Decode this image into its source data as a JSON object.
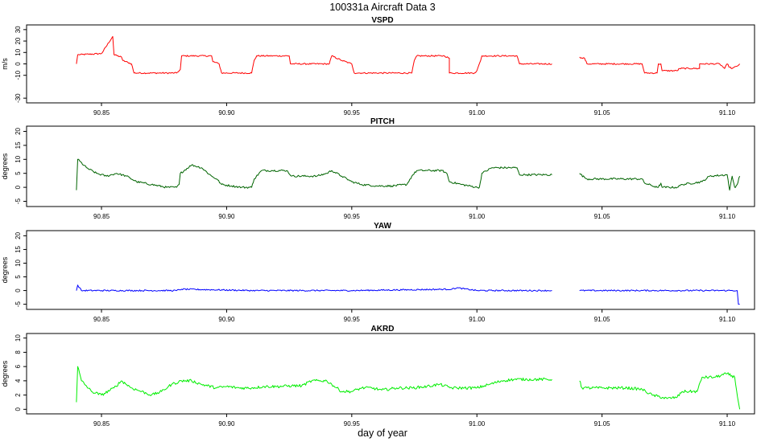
{
  "page": {
    "title": "100331a   Aircraft Data 3",
    "xlabel": "day of year"
  },
  "chart_data": [
    {
      "type": "line",
      "title": "VSPD",
      "ylabel": "m/s",
      "color": "#ff0000",
      "xlim": [
        90.822,
        91.109
      ],
      "ylim": [
        -32,
        32
      ],
      "x_ticks": [
        90.85,
        90.9,
        90.95,
        91.0,
        91.05,
        91.1
      ],
      "x_tick_labels": [
        "90.85",
        "90.90",
        "90.95",
        "91.00",
        "91.05",
        "91.10"
      ],
      "y_ticks": [
        -30,
        -10,
        0,
        10,
        20,
        30
      ],
      "y_tick_labels": [
        "-30",
        "-10",
        "0",
        "10",
        "20",
        "30"
      ],
      "series": [
        {
          "noise": 0.6,
          "x": [
            90.84,
            90.8405,
            90.85,
            90.8545,
            90.855,
            90.858,
            90.8585,
            90.862,
            90.863,
            90.88,
            90.8815,
            90.882,
            90.894,
            90.8945,
            90.897,
            90.898,
            90.91,
            90.911,
            90.912,
            90.925,
            90.9255,
            90.941,
            90.942,
            90.946,
            90.95,
            90.951,
            90.953,
            90.954,
            90.974,
            90.975,
            90.976,
            90.987,
            90.989,
            90.989,
            90.99,
            90.999,
            91.0,
            91.0015,
            91.002,
            91.016,
            91.017,
            91.03,
            null,
            91.041,
            91.0415,
            91.043,
            91.044,
            91.066,
            91.067,
            91.072,
            91.0725,
            91.0735,
            91.074,
            91.08,
            91.081,
            91.089,
            91.089,
            91.097,
            91.099,
            91.1,
            91.101,
            91.102,
            91.104,
            91.105
          ],
          "y": [
            0,
            8,
            9,
            24,
            8,
            6,
            3,
            0,
            -8,
            -8,
            -5,
            7,
            7,
            2,
            0,
            -8,
            -8,
            3,
            7,
            7,
            0,
            0,
            7,
            3,
            0,
            -8,
            -8,
            -8,
            -8,
            3,
            7,
            7,
            5,
            -8,
            -8,
            -8,
            -6,
            3,
            7,
            7,
            0,
            0,
            null,
            6,
            5,
            5,
            0,
            0,
            -8,
            -8,
            0,
            0,
            -6,
            -6,
            -4,
            -4,
            0,
            0,
            -4,
            0,
            -3,
            -4,
            -2,
            0
          ]
        }
      ]
    },
    {
      "type": "line",
      "title": "PITCH",
      "ylabel": "degrees",
      "color": "#006400",
      "xlim": [
        90.822,
        91.109
      ],
      "ylim": [
        -6,
        21
      ],
      "x_ticks": [
        90.85,
        90.9,
        90.95,
        91.0,
        91.05,
        91.1
      ],
      "x_tick_labels": [
        "90.85",
        "90.90",
        "90.95",
        "91.00",
        "91.05",
        "91.10"
      ],
      "y_ticks": [
        -5,
        0,
        5,
        10,
        15,
        20
      ],
      "y_tick_labels": [
        "-5",
        "0",
        "5",
        "10",
        "15",
        "20"
      ],
      "series": [
        {
          "noise": 0.35,
          "x": [
            90.84,
            90.8405,
            90.844,
            90.848,
            90.852,
            90.856,
            90.86,
            90.864,
            90.87,
            90.876,
            90.88,
            90.881,
            90.8815,
            90.886,
            90.89,
            90.894,
            90.896,
            90.898,
            90.902,
            90.906,
            90.91,
            90.911,
            90.914,
            90.918,
            90.924,
            90.926,
            90.932,
            90.936,
            90.94,
            90.942,
            90.946,
            90.95,
            90.954,
            90.96,
            90.966,
            90.972,
            90.974,
            90.976,
            90.98,
            90.986,
            90.988,
            90.989,
            90.994,
            91.0,
            91.001,
            91.002,
            91.006,
            91.01,
            91.016,
            91.017,
            91.02,
            91.03,
            null,
            91.041,
            91.043,
            91.044,
            91.066,
            91.067,
            91.072,
            91.0725,
            91.0735,
            91.074,
            91.08,
            91.082,
            91.09,
            91.093,
            91.1,
            91.101,
            91.102,
            91.103,
            91.104,
            91.105
          ],
          "y": [
            -1,
            10,
            7,
            5,
            4,
            5,
            4,
            2,
            1,
            0,
            0,
            1,
            5,
            8,
            7,
            4,
            3,
            1,
            0.5,
            0,
            0,
            3,
            6,
            6,
            6,
            4,
            4,
            4,
            5,
            6,
            4,
            2,
            1,
            0.5,
            0.5,
            1,
            4,
            6,
            6,
            6,
            5,
            2,
            1,
            0,
            0,
            5,
            7,
            7,
            7,
            4.5,
            4.5,
            4.5,
            null,
            5,
            3.5,
            3,
            3,
            1.5,
            0,
            0,
            1.5,
            0,
            0,
            1,
            2,
            4,
            4.5,
            -1,
            4,
            0,
            1,
            4
          ]
        }
      ]
    },
    {
      "type": "line",
      "title": "YAW",
      "ylabel": "degrees",
      "color": "#0000ff",
      "xlim": [
        90.822,
        91.109
      ],
      "ylim": [
        -6,
        21
      ],
      "x_ticks": [
        90.85,
        90.9,
        90.95,
        91.0,
        91.05,
        91.1
      ],
      "x_tick_labels": [
        "90.85",
        "90.90",
        "90.95",
        "91.00",
        "91.05",
        "91.10"
      ],
      "y_ticks": [
        -5,
        0,
        5,
        10,
        15,
        20
      ],
      "y_tick_labels": [
        "-5",
        "0",
        "5",
        "10",
        "15",
        "20"
      ],
      "series": [
        {
          "noise": 0.25,
          "x": [
            90.84,
            90.8405,
            90.842,
            90.88,
            90.882,
            90.91,
            90.95,
            90.99,
            90.992,
            91.0,
            91.03,
            null,
            91.041,
            91.09,
            91.1,
            91.104,
            91.1045,
            91.105
          ],
          "y": [
            0,
            2,
            0,
            0,
            0.5,
            0,
            0,
            0.5,
            1,
            0,
            0,
            null,
            0,
            0,
            0,
            0,
            -5,
            -5
          ]
        }
      ]
    },
    {
      "type": "line",
      "title": "AKRD",
      "ylabel": "degrees",
      "color": "#00ee00",
      "xlim": [
        90.822,
        91.109
      ],
      "ylim": [
        -0.3,
        10.3
      ],
      "x_ticks": [
        90.85,
        90.9,
        90.95,
        91.0,
        91.05,
        91.1
      ],
      "x_tick_labels": [
        "90.85",
        "90.90",
        "90.95",
        "91.00",
        "91.05",
        "91.10"
      ],
      "y_ticks": [
        0,
        2,
        4,
        6,
        8,
        10
      ],
      "y_tick_labels": [
        "0",
        "2",
        "4",
        "6",
        "8",
        "10"
      ],
      "series": [
        {
          "noise": 0.2,
          "x": [
            90.84,
            90.8405,
            90.842,
            90.846,
            90.85,
            90.855,
            90.858,
            90.862,
            90.866,
            90.87,
            90.874,
            90.878,
            90.882,
            90.886,
            90.89,
            90.896,
            90.9,
            90.905,
            90.91,
            90.915,
            90.92,
            90.926,
            90.93,
            90.934,
            90.94,
            90.942,
            90.946,
            90.95,
            90.954,
            90.958,
            90.962,
            90.968,
            90.974,
            90.98,
            90.985,
            90.99,
            90.995,
            91.0,
            91.005,
            91.01,
            91.015,
            91.02,
            91.03,
            null,
            91.041,
            91.042,
            91.044,
            91.05,
            91.06,
            91.066,
            91.07,
            91.076,
            91.08,
            91.082,
            91.088,
            91.09,
            91.095,
            91.1,
            91.103,
            91.1045,
            91.105
          ],
          "y": [
            1,
            6,
            4,
            2.5,
            2,
            3,
            4,
            3,
            2.5,
            2,
            2.5,
            3.5,
            4,
            4,
            3.5,
            3,
            3.2,
            3,
            3,
            3.2,
            3.2,
            3.3,
            3.3,
            4,
            4,
            3.5,
            2.5,
            2.5,
            3,
            3,
            2.7,
            3,
            3,
            3.2,
            3.5,
            3,
            3,
            3,
            3.5,
            4,
            4.2,
            4.2,
            4.2,
            null,
            4,
            3,
            3,
            3,
            3,
            2.8,
            2,
            1.5,
            1.7,
            2.5,
            2.5,
            4.5,
            4.5,
            5,
            4.5,
            1,
            0
          ]
        }
      ]
    }
  ]
}
